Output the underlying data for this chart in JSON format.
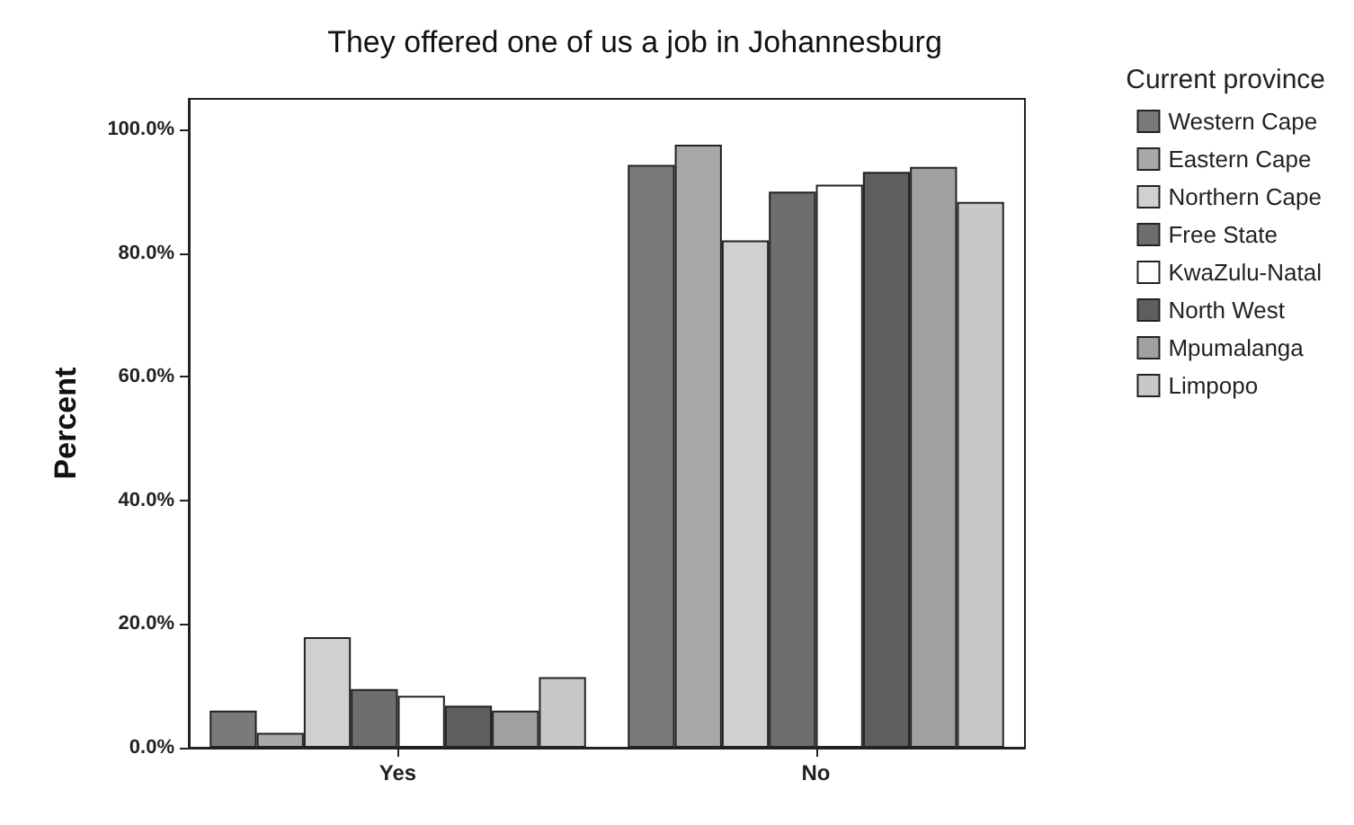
{
  "chart_data": {
    "type": "bar",
    "title": "They offered one of us a job in Johannesburg",
    "ylabel": "Percent",
    "legend_title": "Current province",
    "categories": [
      "Yes",
      "No"
    ],
    "series": [
      {
        "name": "Western Cape",
        "color": "#7a7a7a",
        "values": [
          6.0,
          94.3
        ]
      },
      {
        "name": "Eastern Cape",
        "color": "#a8a8a8",
        "values": [
          2.4,
          97.6
        ]
      },
      {
        "name": "Northern Cape",
        "color": "#d0d0d0",
        "values": [
          17.9,
          82.1
        ]
      },
      {
        "name": "Free State",
        "color": "#6e6e6e",
        "values": [
          9.5,
          90.0
        ]
      },
      {
        "name": "KwaZulu-Natal",
        "color": "#ffffff",
        "values": [
          8.4,
          91.1
        ]
      },
      {
        "name": "North West",
        "color": "#5e5e5e",
        "values": [
          6.8,
          93.2
        ]
      },
      {
        "name": "Mpumalanga",
        "color": "#a0a0a0",
        "values": [
          6.0,
          94.0
        ]
      },
      {
        "name": "Limpopo",
        "color": "#c8c8c8",
        "values": [
          11.4,
          88.3
        ]
      }
    ],
    "ylim": [
      0,
      105
    ],
    "yticks": [
      {
        "value": 0,
        "label": "0.0%"
      },
      {
        "value": 20,
        "label": "20.0%"
      },
      {
        "value": 40,
        "label": "40.0%"
      },
      {
        "value": 60,
        "label": "60.0%"
      },
      {
        "value": 80,
        "label": "80.0%"
      },
      {
        "value": 100,
        "label": "100.0%"
      }
    ],
    "grid": false,
    "legend": "right"
  }
}
